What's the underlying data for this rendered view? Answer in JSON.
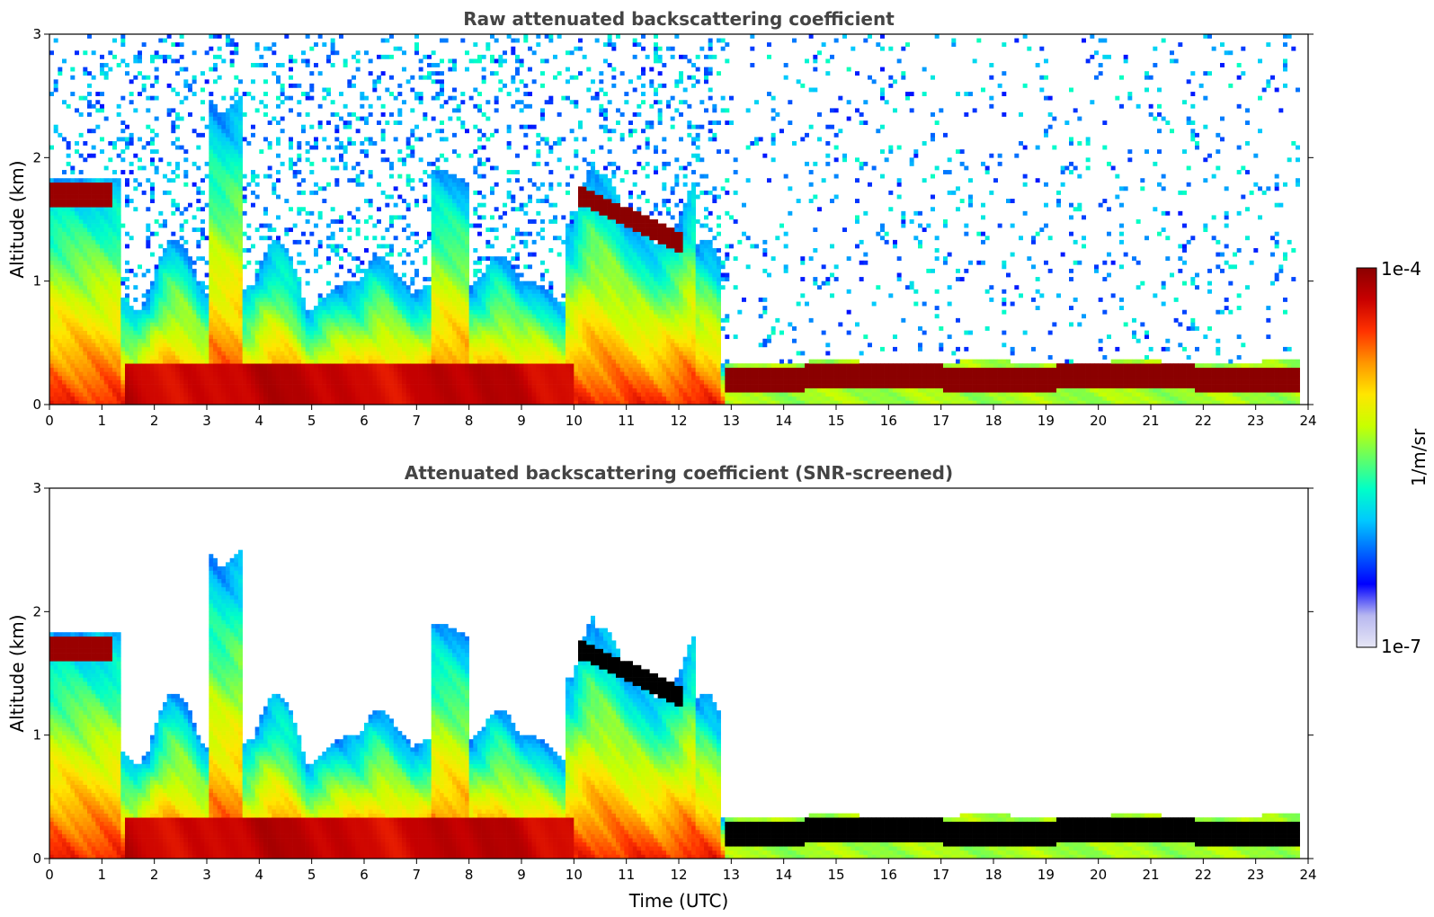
{
  "chart_data": [
    {
      "type": "heatmap",
      "title": "Raw attenuated backscattering coefficient",
      "xlabel": "",
      "ylabel": "Altitude (km)",
      "xlim": [
        0,
        24
      ],
      "ylim": [
        0,
        3
      ],
      "xticks": [
        "0",
        "1",
        "2",
        "3",
        "4",
        "5",
        "6",
        "7",
        "8",
        "9",
        "10",
        "11",
        "12",
        "13",
        "14",
        "15",
        "16",
        "17",
        "18",
        "19",
        "20",
        "21",
        "22",
        "23",
        "24"
      ],
      "yticks": [
        "0",
        "1",
        "2",
        "3"
      ],
      "screened": false,
      "features": [
        {
          "name": "elevated cloud layer (early)",
          "t_start": 0.0,
          "t_end": 1.2,
          "altitude_km": 1.7
        },
        {
          "name": "descending cloud layer",
          "t_start": 10.1,
          "t_end": 12.1,
          "altitude_km_start": 1.7,
          "altitude_km_end": 1.3
        },
        {
          "name": "stratocumulus deck",
          "t_start": 12.9,
          "t_end": 23.8,
          "altitude_km": 0.25
        }
      ]
    },
    {
      "type": "heatmap",
      "title": "Attenuated backscattering coefficient (SNR-screened)",
      "xlabel": "Time (UTC)",
      "ylabel": "Altitude (km)",
      "xlim": [
        0,
        24
      ],
      "ylim": [
        0,
        3
      ],
      "xticks": [
        "0",
        "1",
        "2",
        "3",
        "4",
        "5",
        "6",
        "7",
        "8",
        "9",
        "10",
        "11",
        "12",
        "13",
        "14",
        "15",
        "16",
        "17",
        "18",
        "19",
        "20",
        "21",
        "22",
        "23",
        "24"
      ],
      "yticks": [
        "0",
        "1",
        "2",
        "3"
      ],
      "screened": true
    }
  ],
  "colorbar": {
    "label": "1/m/sr",
    "max_label": "1e-4",
    "min_label": "1e-7",
    "colormap": [
      "#e6e6f5",
      "#b8b8f0",
      "#0000ff",
      "#0064ff",
      "#00c8ff",
      "#00ffc8",
      "#64ff64",
      "#c8ff00",
      "#ffe600",
      "#ff9600",
      "#ff3200",
      "#c80000",
      "#8b0000"
    ]
  }
}
